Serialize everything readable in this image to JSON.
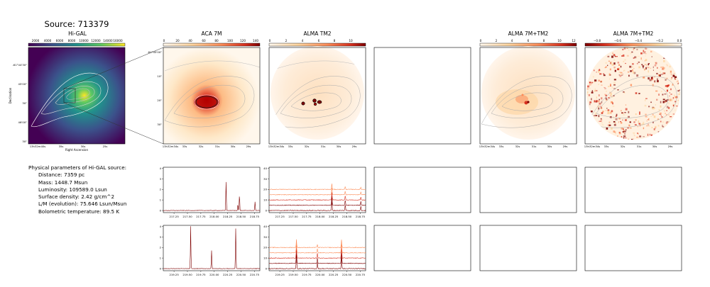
{
  "page": {
    "title": "Source: 713379"
  },
  "params": {
    "header": "Physical parameters of Hi-GAL source:",
    "rows": [
      "Distance: 7359 pc",
      "Mass: 1448.7 Msun",
      "Luminosity: 109589.0 Lsun",
      "Surface density: 2.42 g/cm^2",
      "L/M (evolution): 75.646 Lsun/Msun",
      "Bolometric temperature: 89.5 K"
    ]
  },
  "colors": {
    "viridis": [
      "#440154",
      "#3b528b",
      "#21918c",
      "#5ec962",
      "#fde725"
    ],
    "orrd": [
      "#fff7ec",
      "#fdd49e",
      "#fc8d59",
      "#d7301f",
      "#7f0000"
    ],
    "spectrum_dark": "#7f0000",
    "spectrum_mid": "#d7301f",
    "spectrum_light": "#fc8d59",
    "contour": "#999999"
  },
  "chart_data": [
    {
      "type": "heatmap",
      "title": "Hi-GAL",
      "colorbar_ticks": [
        "2000",
        "4000",
        "6000",
        "8000",
        "10000",
        "12000",
        "14000",
        "16000"
      ],
      "xlabel": "Right Ascension",
      "ylabel": "Declination",
      "xticks": [
        "13h32m40s",
        "35s",
        "30s",
        "25s"
      ],
      "yticks": [
        "-61°44'30\"",
        "45'00\"",
        "30\"",
        "46'00\"",
        "30\""
      ]
    },
    {
      "type": "heatmap",
      "title": "ACA 7M",
      "colorbar_ticks": [
        "0",
        "20",
        "40",
        "60",
        "80",
        "100",
        "120",
        "140"
      ],
      "xticks": [
        "13h32m34s",
        "33s",
        "32s",
        "31s",
        "30s",
        "29s"
      ],
      "yticks": [
        "-61°45'00\"",
        "10\"",
        "20\"",
        "30\""
      ]
    },
    {
      "type": "heatmap",
      "title": "ALMA TM2",
      "colorbar_ticks": [
        "0",
        "2",
        "4",
        "6",
        "8",
        "10"
      ],
      "xticks": [
        "13h32m34s",
        "33s",
        "32s",
        "31s",
        "30s",
        "29s"
      ]
    },
    {
      "type": "heatmap",
      "title": "ALMA 7M+TM2",
      "colorbar_ticks": [
        "0",
        "2",
        "4",
        "6",
        "8",
        "10",
        "12"
      ],
      "xticks": [
        "13h32m34s",
        "33s",
        "32s",
        "31s",
        "30s",
        "29s"
      ]
    },
    {
      "type": "heatmap",
      "title": "ALMA 7M+TM2",
      "colorbar_ticks": [
        "−0.8",
        "−0.6",
        "−0.4",
        "−0.2",
        "0.0"
      ],
      "xticks": [
        "13h32m34s",
        "33s",
        "32s",
        "31s",
        "30s",
        "29s"
      ]
    },
    {
      "type": "line",
      "panel": "aca-spectrum-upper",
      "xticks": [
        "217.25",
        "217.50",
        "217.75",
        "218.00",
        "218.25",
        "218.50",
        "218.75"
      ],
      "yticks": [
        "0",
        "1",
        "2",
        "3",
        "4"
      ],
      "xlim": [
        217.05,
        218.85
      ],
      "ylim": [
        -0.2,
        4.1
      ],
      "peaks": [
        {
          "x": 218.22,
          "y": 2.7
        },
        {
          "x": 218.47,
          "y": 1.5
        },
        {
          "x": 218.44,
          "y": 0.6
        },
        {
          "x": 218.76,
          "y": 0.8
        }
      ]
    },
    {
      "type": "line",
      "panel": "tm2-spectrum-upper",
      "xticks": [
        "217.25",
        "217.50",
        "217.75",
        "218.00",
        "218.25",
        "218.50",
        "218.75"
      ],
      "yticks": [
        "0",
        "10",
        "20",
        "30",
        "40"
      ],
      "xlim": [
        217.05,
        218.85
      ],
      "ylim": [
        -2,
        41
      ],
      "offsets": [
        0,
        5,
        10,
        15,
        20
      ],
      "peaks": [
        {
          "x": 218.22,
          "y": 20
        },
        {
          "x": 218.47,
          "y": 12
        },
        {
          "x": 218.76,
          "y": 8
        }
      ]
    },
    {
      "type": "line",
      "panel": "aca-spectrum-lower",
      "xticks": [
        "219.25",
        "219.50",
        "219.75",
        "220.00",
        "220.25",
        "220.50",
        "220.75"
      ],
      "yticks": [
        "0",
        "1",
        "2",
        "3",
        "4"
      ],
      "xlim": [
        219.05,
        220.85
      ],
      "ylim": [
        -0.2,
        4.1
      ],
      "peaks": [
        {
          "x": 219.56,
          "y": 4.0
        },
        {
          "x": 219.95,
          "y": 1.7
        },
        {
          "x": 220.4,
          "y": 3.8
        }
      ]
    },
    {
      "type": "line",
      "panel": "tm2-spectrum-lower",
      "xticks": [
        "219.25",
        "219.50",
        "219.75",
        "220.00",
        "220.25",
        "220.50",
        "220.75"
      ],
      "yticks": [
        "0",
        "10",
        "20",
        "30",
        "40"
      ],
      "xlim": [
        219.05,
        220.85
      ],
      "ylim": [
        -2,
        41
      ],
      "offsets": [
        0,
        5,
        10,
        15,
        20
      ],
      "peaks": [
        {
          "x": 219.56,
          "y": 30
        },
        {
          "x": 219.95,
          "y": 12
        },
        {
          "x": 220.4,
          "y": 28
        }
      ]
    }
  ]
}
